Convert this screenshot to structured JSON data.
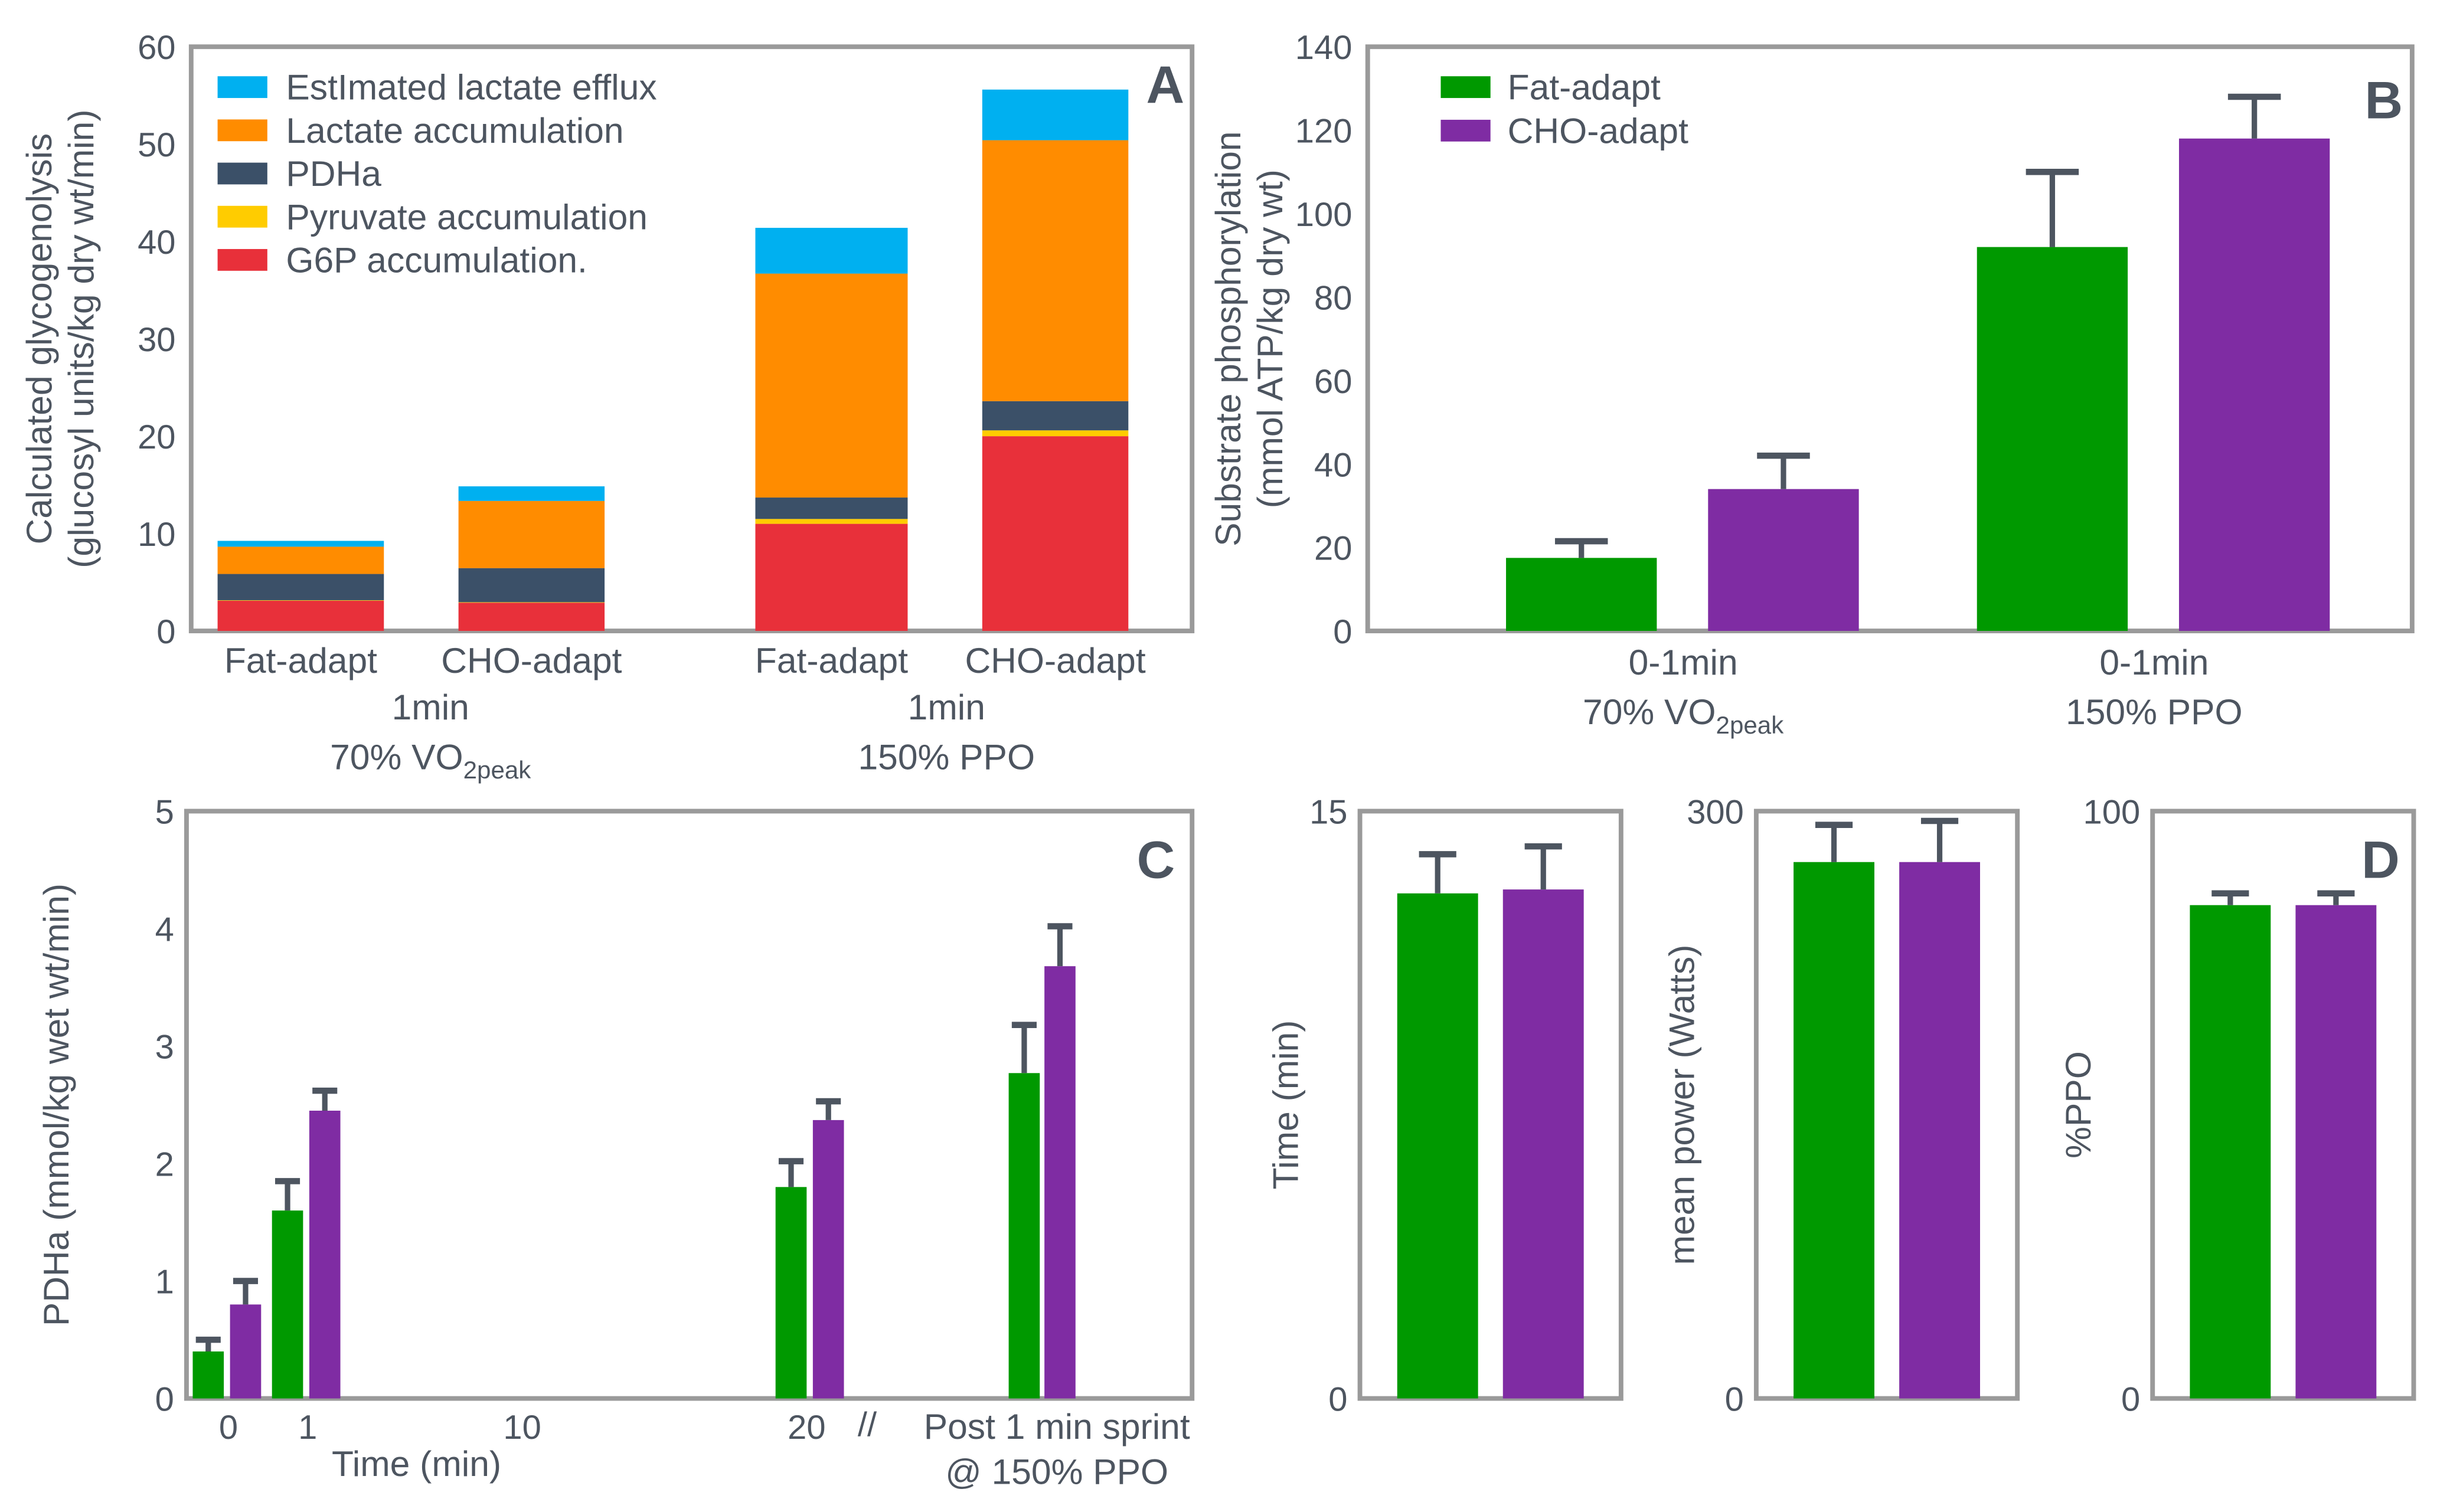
{
  "colors": {
    "fat": "#009900",
    "cho": "#7f2ca3",
    "efflux": "#00b0f0",
    "lactate": "#ff8c00",
    "pdha": "#3b5068",
    "pyruvate": "#ffcc00",
    "g6p": "#e8303a",
    "text": "#4d5560",
    "frame": "#9a9a9a",
    "error": "#4d5560"
  },
  "chart_data": [
    {
      "panel": "A",
      "type": "bar",
      "stacked": true,
      "ylabel": [
        "Calculated glycogenolysis",
        "(glucosyl units/kg dry wt/min)"
      ],
      "ylim": [
        0,
        60
      ],
      "yticks": [
        "0",
        "10",
        "20",
        "30",
        "40",
        "50",
        "60"
      ],
      "categories": [
        "Fat-adapt",
        "CHO-adapt",
        "Fat-adapt",
        "CHO-adapt"
      ],
      "groups": [
        {
          "line1": "1min",
          "line2": "70% VO",
          "sub": "2peak"
        },
        {
          "line1": "1min",
          "line2": "150% PPO",
          "sub": ""
        }
      ],
      "legend_position": "top-left",
      "series": [
        {
          "name": "G6P accumulation.",
          "color_key": "g6p",
          "values": [
            3.1,
            2.9,
            11.0,
            20.0
          ]
        },
        {
          "name": "Pyruvate accumulation",
          "color_key": "pyruvate",
          "values": [
            0.05,
            0.05,
            0.5,
            0.6
          ]
        },
        {
          "name": "PDHa",
          "color_key": "pdha",
          "values": [
            2.7,
            3.5,
            2.2,
            3.0
          ]
        },
        {
          "name": "Lactate accumulation",
          "color_key": "lactate",
          "values": [
            2.8,
            6.9,
            23.0,
            26.8
          ]
        },
        {
          "name": "EstImated lactate efflux",
          "color_key": "efflux",
          "values": [
            0.6,
            1.5,
            4.7,
            5.2
          ]
        }
      ]
    },
    {
      "panel": "B",
      "type": "bar",
      "ylabel": [
        "Substrate phosphorylation",
        "(mmol ATP/kg dry wt)"
      ],
      "ylim": [
        0,
        140
      ],
      "yticks": [
        "0",
        "20",
        "40",
        "60",
        "80",
        "100",
        "120",
        "140"
      ],
      "groups": [
        {
          "line1": "0-1min",
          "line2": "70% VO",
          "sub": "2peak"
        },
        {
          "line1": "0-1min",
          "line2": "150% PPO",
          "sub": ""
        }
      ],
      "legend_position": "top-left",
      "series": [
        {
          "name": "Fat-adapt",
          "color_key": "fat",
          "values": [
            17.5,
            92
          ],
          "error_upper": [
            21.5,
            110
          ]
        },
        {
          "name": "CHO-adapt",
          "color_key": "cho",
          "values": [
            34,
            118
          ],
          "error_upper": [
            42,
            128
          ]
        }
      ]
    },
    {
      "panel": "C",
      "type": "bar",
      "ylabel": "PDHa (mmol/kg wet wt/min)",
      "xlabel": "Time (min)",
      "ylim": [
        0,
        5
      ],
      "yticks": [
        "0",
        "1",
        "2",
        "3",
        "4",
        "5"
      ],
      "xticks": [
        "0",
        "1",
        "10",
        "20"
      ],
      "break_mark": "//",
      "post_label": [
        "Post 1 min sprint",
        "@ 150% PPO"
      ],
      "series": [
        {
          "name": "Fat-adapt",
          "color_key": "fat",
          "values": [
            0.4,
            1.6,
            1.8,
            2.77
          ],
          "error_upper": [
            0.5,
            1.85,
            2.02,
            3.18
          ]
        },
        {
          "name": "CHO-adapt",
          "color_key": "cho",
          "values": [
            0.8,
            2.45,
            2.37,
            3.68
          ],
          "error_upper": [
            1.0,
            2.62,
            2.53,
            4.02
          ]
        }
      ]
    },
    {
      "panel": "D",
      "type": "bar",
      "subplots": [
        {
          "ylabel": "Time (min)",
          "ylim": [
            0,
            15
          ],
          "yticks": [
            "0",
            "15"
          ],
          "values": [
            12.9,
            13.0
          ],
          "error_upper": [
            13.9,
            14.1
          ]
        },
        {
          "ylabel": "mean power (Watts)",
          "ylim": [
            0,
            300
          ],
          "yticks": [
            "0",
            "300"
          ],
          "values": [
            274,
            274
          ],
          "error_upper": [
            293,
            295
          ]
        },
        {
          "ylabel": "%PPO",
          "ylim": [
            0,
            100
          ],
          "yticks": [
            "0",
            "100"
          ],
          "values": [
            84,
            84
          ],
          "error_upper": [
            86,
            86
          ]
        }
      ],
      "series_names": [
        "Fat-adapt",
        "CHO-adapt"
      ]
    }
  ]
}
